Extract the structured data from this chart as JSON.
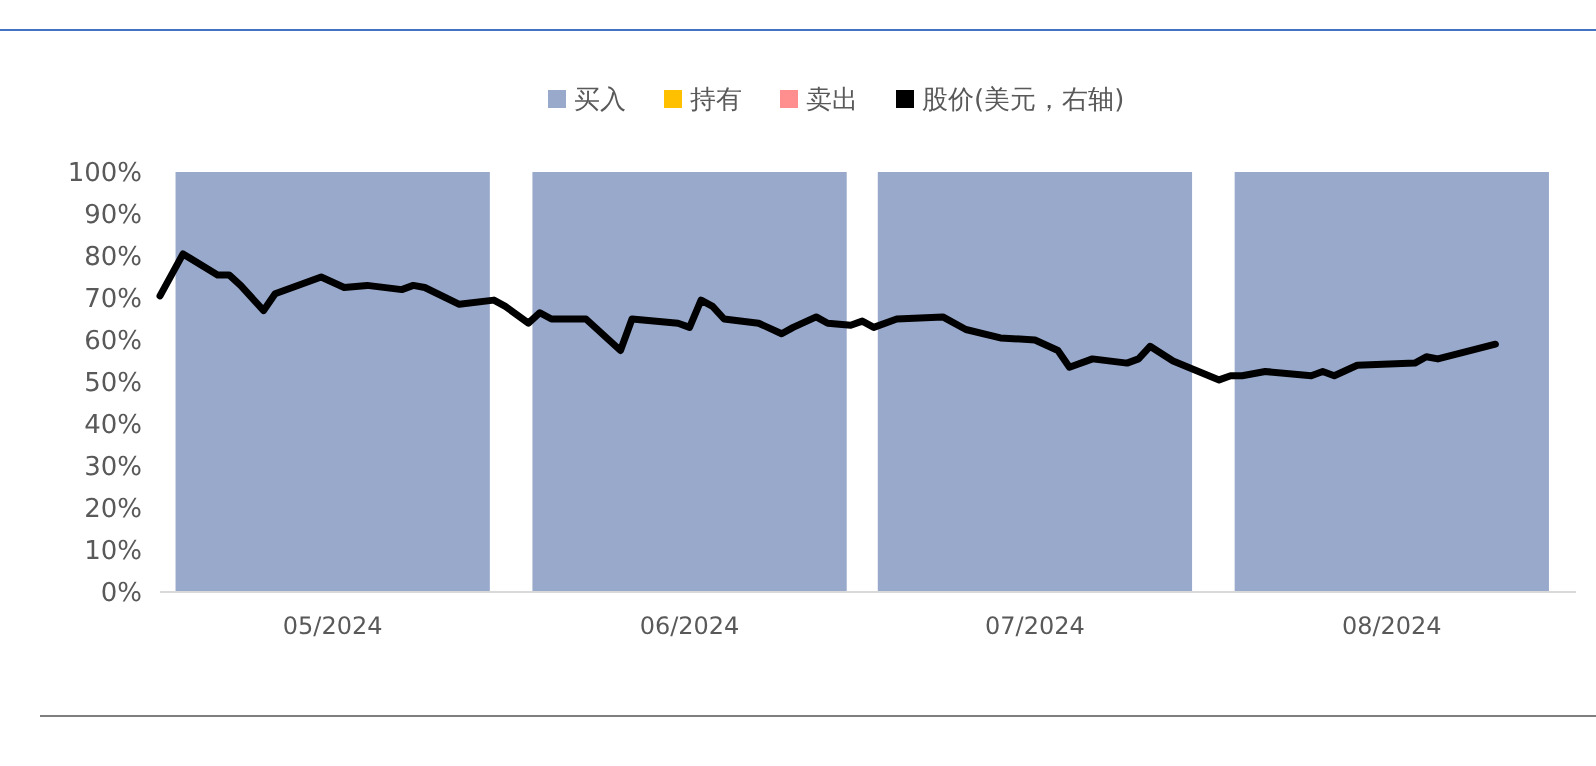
{
  "chart_data": {
    "type": "bar",
    "stacked": true,
    "x": [
      "2024-05-16",
      "2024-06-16",
      "2024-07-16",
      "2024-08-16"
    ],
    "xlim": [
      "2024-05-01",
      "2024-09-01"
    ],
    "xticks": [
      {
        "value": "2024-05-16",
        "label": "05/2024"
      },
      {
        "value": "2024-06-16",
        "label": "06/2024"
      },
      {
        "value": "2024-07-16",
        "label": "07/2024"
      },
      {
        "value": "2024-08-16",
        "label": "08/2024"
      }
    ],
    "ylim": [
      0,
      100
    ],
    "yticks": [
      {
        "value": 0,
        "label": "0%"
      },
      {
        "value": 10,
        "label": "10%"
      },
      {
        "value": 20,
        "label": "20%"
      },
      {
        "value": 30,
        "label": "30%"
      },
      {
        "value": 40,
        "label": "40%"
      },
      {
        "value": 50,
        "label": "50%"
      },
      {
        "value": 60,
        "label": "60%"
      },
      {
        "value": 70,
        "label": "70%"
      },
      {
        "value": 80,
        "label": "80%"
      },
      {
        "value": 90,
        "label": "90%"
      },
      {
        "value": 100,
        "label": "100%"
      }
    ],
    "legend": "top",
    "series": [
      {
        "name": "买入",
        "color": "#98a9cb",
        "values": [
          100,
          100,
          100,
          100
        ]
      },
      {
        "name": "持有",
        "color": "#ffc000",
        "values": [
          0,
          0,
          0,
          0
        ]
      },
      {
        "name": "卖出",
        "color": "#ff8f8f",
        "values": [
          0,
          0,
          0,
          0
        ]
      },
      {
        "name": "股价(美元，右轴)",
        "type": "line",
        "color": "#000000",
        "x": [
          "2024-05-01",
          "2024-05-03",
          "2024-05-06",
          "2024-05-07",
          "2024-05-08",
          "2024-05-10",
          "2024-05-11",
          "2024-05-15",
          "2024-05-17",
          "2024-05-19",
          "2024-05-22",
          "2024-05-23",
          "2024-05-24",
          "2024-05-27",
          "2024-05-30",
          "2024-05-31",
          "2024-06-02",
          "2024-06-03",
          "2024-06-04",
          "2024-06-07",
          "2024-06-10",
          "2024-06-11",
          "2024-06-15",
          "2024-06-16",
          "2024-06-17",
          "2024-06-18",
          "2024-06-19",
          "2024-06-22",
          "2024-06-24",
          "2024-06-25",
          "2024-06-27",
          "2024-06-28",
          "2024-06-30",
          "2024-07-01",
          "2024-07-02",
          "2024-07-04",
          "2024-07-08",
          "2024-07-10",
          "2024-07-13",
          "2024-07-16",
          "2024-07-18",
          "2024-07-19",
          "2024-07-21",
          "2024-07-24",
          "2024-07-25",
          "2024-07-26",
          "2024-07-28",
          "2024-08-01",
          "2024-08-02",
          "2024-08-03",
          "2024-08-05",
          "2024-08-09",
          "2024-08-10",
          "2024-08-11",
          "2024-08-13",
          "2024-08-18",
          "2024-08-19",
          "2024-08-20",
          "2024-08-25"
        ],
        "values": [
          70.5,
          80.5,
          75.5,
          75.5,
          73,
          67,
          71,
          75,
          72.5,
          73,
          72,
          73,
          72.5,
          68.5,
          69.5,
          68,
          64,
          66.5,
          65,
          65,
          57.5,
          65,
          64,
          63,
          69.5,
          68,
          65,
          64,
          61.5,
          63,
          65.5,
          64,
          63.5,
          64.5,
          63,
          65,
          65.5,
          62.5,
          60.5,
          60,
          57.5,
          53.5,
          55.5,
          54.5,
          55.5,
          58.5,
          55,
          50.5,
          51.5,
          51.5,
          52.5,
          51.5,
          52.5,
          51.5,
          54,
          54.5,
          56,
          55.5,
          59
        ]
      }
    ]
  }
}
